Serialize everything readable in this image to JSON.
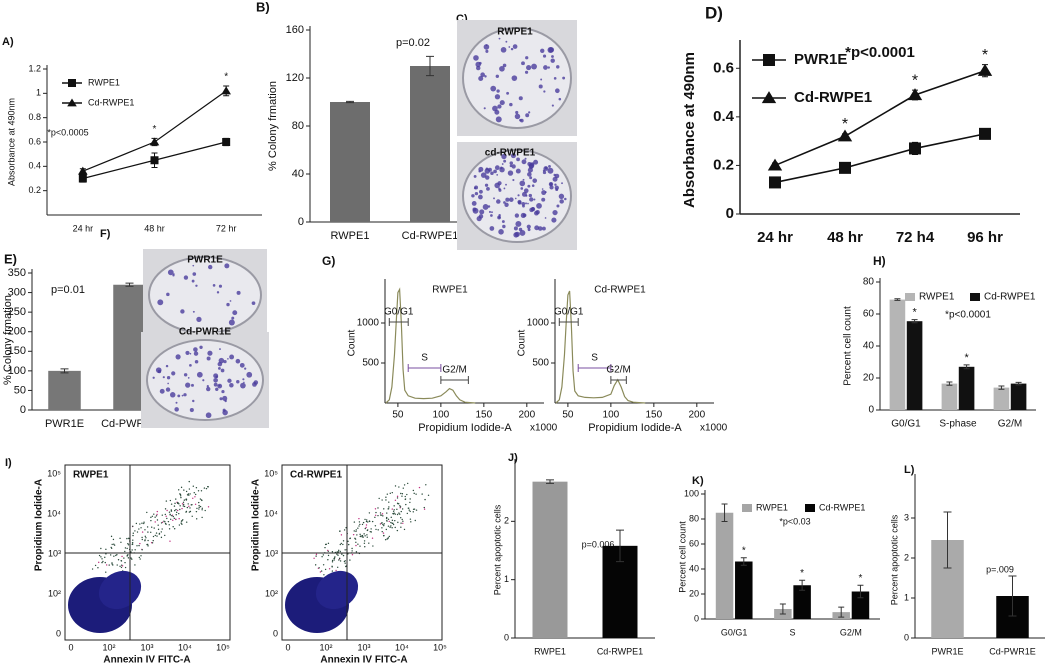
{
  "chart_data": [
    {
      "type": "line",
      "panel": "A)",
      "ylabel": "Absorbance at 490nm",
      "annotation": "*p<0.0005",
      "categories": [
        "24 hr",
        "48 hr",
        "72 hr"
      ],
      "series": [
        {
          "name": "RWPE1",
          "color": "#111111",
          "marker": "square",
          "values": [
            0.3,
            0.45,
            0.6
          ],
          "errors": [
            0.03,
            0.06,
            0.03
          ]
        },
        {
          "name": "Cd-RWPE1",
          "color": "#111111",
          "marker": "triangle",
          "values": [
            0.36,
            0.6,
            1.02
          ],
          "errors": [
            0.02,
            0.03,
            0.04
          ],
          "significance": [
            null,
            "*",
            "*"
          ]
        }
      ],
      "ylim": [
        0,
        1.2
      ],
      "yticks": [
        0.2,
        0.4,
        0.6,
        0.8,
        1,
        1.2
      ]
    },
    {
      "type": "bar",
      "panel": "B)",
      "ylabel": "% Colony frmation",
      "annotation": "p=0.02",
      "categories": [
        "RWPE1",
        "Cd-RWPE1"
      ],
      "values": [
        100,
        130
      ],
      "errors": [
        0.5,
        8
      ],
      "colors": [
        "#6d6d6d",
        "#6d6d6d"
      ],
      "ylim": [
        0,
        160
      ],
      "yticks": [
        0,
        40,
        80,
        120,
        160
      ]
    },
    {
      "type": "line",
      "panel": "D)",
      "ylabel": "Absorbance at 490nm",
      "annotation": "*p<0.0001",
      "categories": [
        "24 hr",
        "48 hr",
        "72 h4",
        "96 hr"
      ],
      "series": [
        {
          "name": "PWR1E",
          "color": "#111111",
          "marker": "square",
          "values": [
            0.13,
            0.19,
            0.27,
            0.33
          ],
          "errors": [
            0.01,
            0.01,
            0.025,
            0.02
          ]
        },
        {
          "name": "Cd-RWPE1",
          "color": "#111111",
          "marker": "triangle",
          "values": [
            0.2,
            0.32,
            0.49,
            0.59
          ],
          "errors": [
            0.01,
            0.01,
            0.02,
            0.025
          ],
          "significance": [
            null,
            "*",
            "*",
            "*"
          ]
        }
      ],
      "ylim": [
        0,
        0.7
      ],
      "yticks": [
        0,
        0.2,
        0.4,
        0.6
      ]
    },
    {
      "type": "bar",
      "panel": "E)",
      "ylabel": "% Colony frmation",
      "annotation": "p=0.01",
      "categories": [
        "PWR1E",
        "Cd-PWR1E"
      ],
      "values": [
        100,
        320
      ],
      "errors": [
        5,
        4
      ],
      "colors": [
        "#777777",
        "#777777"
      ],
      "ylim": [
        0,
        350
      ],
      "yticks": [
        0,
        50,
        100,
        150,
        200,
        250,
        300,
        350
      ]
    },
    {
      "type": "line",
      "panel": "G)",
      "title": "RWPE1",
      "ylabel": "Count",
      "xlabel": "Propidium Iodide-A",
      "xunit": "x1000",
      "color": "#8a8a5a",
      "x": [
        36,
        40,
        43,
        46,
        48,
        50,
        52,
        54,
        56,
        58,
        62,
        70,
        80,
        90,
        100,
        106,
        110,
        114,
        118,
        122,
        128,
        140
      ],
      "values": [
        0,
        40,
        200,
        600,
        1000,
        1380,
        1420,
        1000,
        420,
        160,
        90,
        60,
        55,
        60,
        90,
        140,
        180,
        160,
        90,
        40,
        10,
        0
      ],
      "gates": [
        {
          "label": "G0/G1",
          "range": [
            40,
            62
          ]
        },
        {
          "label": "S",
          "range": [
            62,
            100
          ]
        },
        {
          "label": "G2/M",
          "range": [
            100,
            132
          ]
        }
      ],
      "xlim": [
        35,
        220
      ],
      "xticks": [
        50,
        100,
        150,
        200
      ],
      "ylim": [
        0,
        1500
      ],
      "yticks": [
        500,
        1000
      ]
    },
    {
      "type": "line",
      "title": "Cd-RWPE1",
      "ylabel": "Count",
      "xlabel": "Propidium Iodide-A",
      "xunit": "x1000",
      "color": "#8a8a5a",
      "x": [
        36,
        40,
        43,
        46,
        48,
        50,
        52,
        54,
        56,
        58,
        62,
        70,
        80,
        90,
        100,
        104,
        108,
        112,
        116,
        120,
        126,
        140
      ],
      "values": [
        0,
        40,
        200,
        600,
        1000,
        1350,
        1400,
        980,
        400,
        150,
        90,
        70,
        65,
        70,
        110,
        220,
        290,
        200,
        80,
        30,
        10,
        0
      ],
      "gates": [
        {
          "label": "G0/G1",
          "range": [
            40,
            62
          ]
        },
        {
          "label": "S",
          "range": [
            62,
            100
          ]
        },
        {
          "label": "G2/M",
          "range": [
            100,
            118
          ]
        }
      ],
      "xlim": [
        35,
        220
      ],
      "xticks": [
        50,
        100,
        150,
        200
      ],
      "ylim": [
        0,
        1500
      ],
      "yticks": [
        500,
        1000
      ]
    },
    {
      "type": "groupedbar",
      "panel": "H)",
      "ylabel": "Percent cell count",
      "annotation": "*p<0.0001",
      "categories": [
        "G0/G1",
        "S-phase",
        "G2/M"
      ],
      "series": [
        {
          "name": "RWPE1",
          "color": "#b5b5b5",
          "values": [
            69,
            16.5,
            14
          ],
          "errors": [
            0.5,
            1,
            1
          ]
        },
        {
          "name": "Cd-RWPE1",
          "color": "#111111",
          "values": [
            55.5,
            27,
            16.5
          ],
          "errors": [
            1,
            1.2,
            0.8
          ],
          "significance": [
            "*",
            "*",
            null
          ]
        }
      ],
      "ylim": [
        0,
        80
      ],
      "yticks": [
        0,
        20,
        40,
        60,
        80
      ]
    },
    {
      "type": "bar",
      "panel": "J)",
      "ylabel": "Percent apoptotic cells",
      "annotation": "p=0.006",
      "categories": [
        "RWPE1",
        "Cd-RWPE1"
      ],
      "values": [
        2.68,
        1.58
      ],
      "errors": [
        0.03,
        0.27
      ],
      "colors": [
        "#999999",
        "#050505"
      ],
      "ylim": [
        0,
        3
      ],
      "yticks": [
        0,
        1,
        2
      ]
    },
    {
      "type": "groupedbar",
      "panel": "K)",
      "ylabel": "Percent cell count",
      "annotation": "*p<0.03",
      "categories": [
        "G0/G1",
        "S",
        "G2/M"
      ],
      "series": [
        {
          "name": "RWPE1",
          "color": "#a6a6a6",
          "values": [
            85,
            8,
            5.5
          ],
          "errors": [
            7,
            4,
            4
          ]
        },
        {
          "name": "Cd-RWPE1",
          "color": "#050505",
          "values": [
            46,
            27,
            22
          ],
          "errors": [
            3,
            4,
            5
          ],
          "significance": [
            "*",
            "*",
            "*"
          ]
        }
      ],
      "ylim": [
        0,
        100
      ],
      "yticks": [
        0,
        20,
        40,
        60,
        80,
        100
      ]
    },
    {
      "type": "bar",
      "panel": "L)",
      "ylabel": "Percent apoptotic cells",
      "annotation": "p=.009",
      "categories": [
        "PWR1E",
        "Cd-PWR1E"
      ],
      "values": [
        2.45,
        1.05
      ],
      "errors": [
        0.7,
        0.5
      ],
      "colors": [
        "#aaaaaa",
        "#050505"
      ],
      "ylim": [
        0,
        4
      ],
      "yticks": [
        0,
        1,
        2,
        3
      ]
    }
  ],
  "photos": [
    {
      "panel": "C)",
      "captions": [
        "RWPE1",
        "cd-RWPE1"
      ]
    },
    {
      "panel": "F)",
      "captions": [
        "PWR1E",
        "Cd-PWR1E"
      ]
    }
  ],
  "flow": {
    "panel": "I)",
    "plots": [
      {
        "title": "RWPE1",
        "ylabel": "Propidium Iodide-A",
        "xlabel": "Annexin IV FITC-A",
        "xticklabels": [
          "0",
          "10²",
          "10³",
          "10⁴",
          "10⁵"
        ],
        "yticklabels": [
          "0",
          "10²",
          "10³",
          "10⁴",
          "10⁵"
        ]
      },
      {
        "title": "Cd-RWPE1",
        "ylabel": "Propidium Iodide-A",
        "xlabel": "Annexin IV FITC-A",
        "xticklabels": [
          "0",
          "10²",
          "10³",
          "10⁴",
          "10⁵"
        ],
        "yticklabels": [
          "0",
          "10²",
          "10³",
          "10⁴",
          "10⁵"
        ]
      }
    ]
  }
}
